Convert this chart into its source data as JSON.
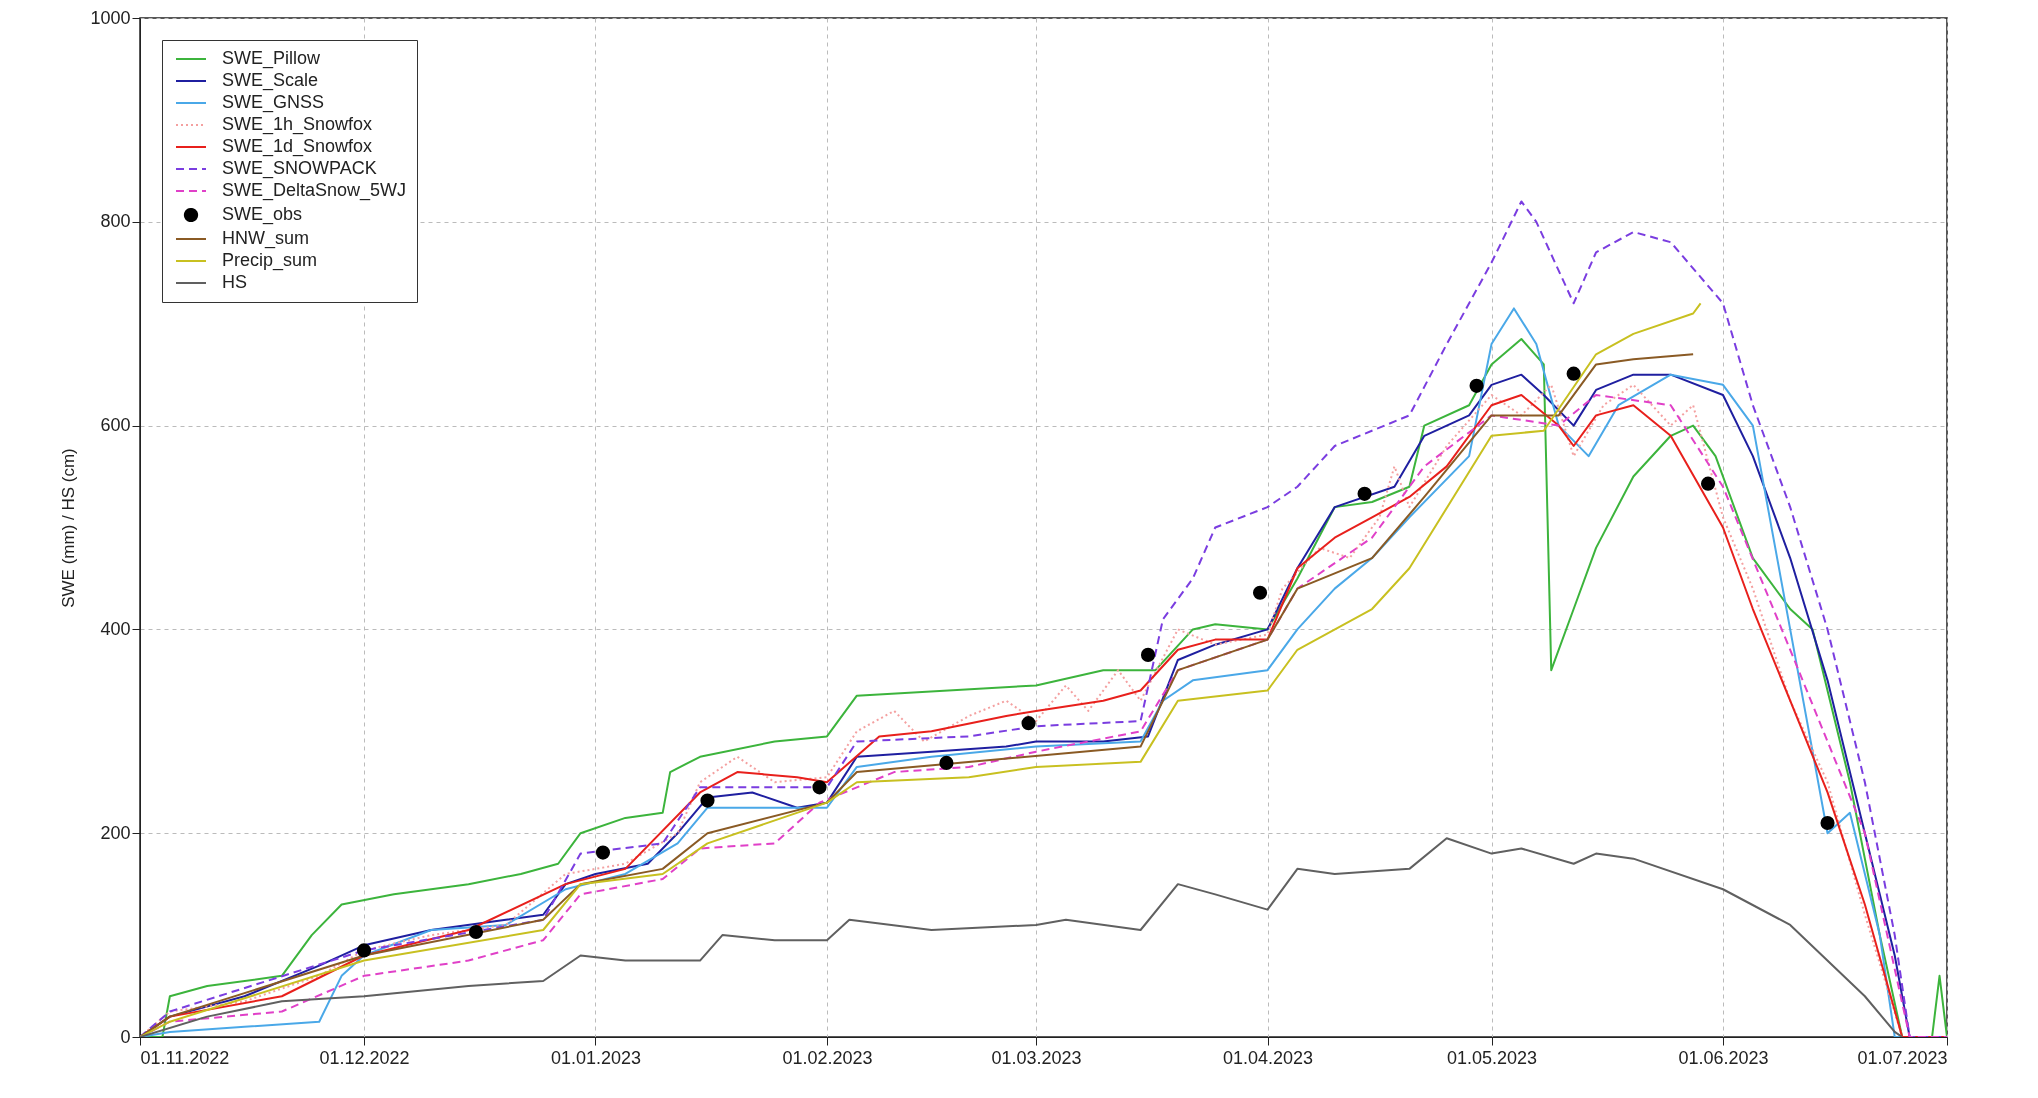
{
  "chart_data": {
    "type": "line",
    "ylabel": "SWE (mm) / HS (cm)",
    "xlim": [
      "2022-11-01",
      "2023-07-01"
    ],
    "xticks": [
      {
        "value": "2022-11-01",
        "label": "01.11.2022"
      },
      {
        "value": "2022-12-01",
        "label": "01.12.2022"
      },
      {
        "value": "2023-01-01",
        "label": "01.01.2023"
      },
      {
        "value": "2023-02-01",
        "label": "01.02.2023"
      },
      {
        "value": "2023-03-01",
        "label": "01.03.2023"
      },
      {
        "value": "2023-04-01",
        "label": "01.04.2023"
      },
      {
        "value": "2023-05-01",
        "label": "01.05.2023"
      },
      {
        "value": "2023-06-01",
        "label": "01.06.2023"
      },
      {
        "value": "2023-07-01",
        "label": "01.07.2023"
      }
    ],
    "ylim": [
      0,
      1000
    ],
    "yticks": [
      0,
      200,
      400,
      600,
      800,
      1000
    ],
    "grid": true,
    "legend": "top left",
    "series": [
      {
        "name": "SWE_Pillow",
        "type": "line",
        "color": "#3cb43c",
        "line_style": "solid",
        "x": [
          "2022-11-01",
          "2022-11-04",
          "2022-11-05",
          "2022-11-10",
          "2022-11-20",
          "2022-11-24",
          "2022-11-28",
          "2022-12-05",
          "2022-12-15",
          "2022-12-22",
          "2022-12-27",
          "2022-12-30",
          "2023-01-05",
          "2023-01-10",
          "2023-01-11",
          "2023-01-15",
          "2023-01-25",
          "2023-02-01",
          "2023-02-05",
          "2023-03-01",
          "2023-03-10",
          "2023-03-17",
          "2023-03-22",
          "2023-03-25",
          "2023-04-01",
          "2023-04-05",
          "2023-04-10",
          "2023-04-15",
          "2023-04-20",
          "2023-04-22",
          "2023-04-28",
          "2023-05-01",
          "2023-05-05",
          "2023-05-08",
          "2023-05-09",
          "2023-05-12",
          "2023-05-15",
          "2023-05-20",
          "2023-05-25",
          "2023-05-28",
          "2023-05-31",
          "2023-06-05",
          "2023-06-10",
          "2023-06-13",
          "2023-06-18",
          "2023-06-22",
          "2023-06-25",
          "2023-06-29",
          "2023-06-30",
          "2023-07-01"
        ],
        "values": [
          0,
          0,
          40,
          50,
          60,
          100,
          130,
          140,
          150,
          160,
          170,
          200,
          215,
          220,
          260,
          275,
          290,
          295,
          335,
          345,
          360,
          360,
          400,
          405,
          400,
          450,
          520,
          525,
          540,
          600,
          620,
          660,
          685,
          660,
          360,
          420,
          480,
          550,
          590,
          600,
          570,
          470,
          420,
          400,
          250,
          100,
          0,
          0,
          60,
          0
        ]
      },
      {
        "name": "SWE_Scale",
        "type": "line",
        "color": "#1f1fa0",
        "line_style": "solid",
        "x": [
          "2022-11-01",
          "2022-11-05",
          "2022-11-15",
          "2022-11-25",
          "2022-12-01",
          "2022-12-10",
          "2022-12-20",
          "2022-12-25",
          "2022-12-28",
          "2023-01-01",
          "2023-01-08",
          "2023-01-12",
          "2023-01-16",
          "2023-01-22",
          "2023-01-28",
          "2023-02-01",
          "2023-02-05",
          "2023-02-15",
          "2023-02-25",
          "2023-03-01",
          "2023-03-10",
          "2023-03-16",
          "2023-03-20",
          "2023-03-25",
          "2023-04-01",
          "2023-04-05",
          "2023-04-10",
          "2023-04-18",
          "2023-04-22",
          "2023-04-28",
          "2023-05-01",
          "2023-05-05",
          "2023-05-08",
          "2023-05-12",
          "2023-05-15",
          "2023-05-20",
          "2023-05-25",
          "2023-06-01",
          "2023-06-05",
          "2023-06-10",
          "2023-06-15",
          "2023-06-20",
          "2023-06-24",
          "2023-06-26",
          "2023-07-01"
        ],
        "values": [
          0,
          20,
          40,
          70,
          90,
          105,
          115,
          120,
          150,
          160,
          170,
          200,
          235,
          240,
          225,
          230,
          275,
          280,
          285,
          290,
          290,
          295,
          370,
          385,
          400,
          460,
          520,
          540,
          590,
          610,
          640,
          650,
          630,
          600,
          635,
          650,
          650,
          630,
          570,
          470,
          350,
          200,
          80,
          0,
          0
        ]
      },
      {
        "name": "SWE_GNSS",
        "type": "line",
        "color": "#4aa8e8",
        "line_style": "solid",
        "x": [
          "2022-11-01",
          "2022-11-05",
          "2022-11-15",
          "2022-11-25",
          "2022-11-28",
          "2022-12-01",
          "2022-12-10",
          "2022-12-20",
          "2022-12-28",
          "2023-01-05",
          "2023-01-12",
          "2023-01-16",
          "2023-01-25",
          "2023-02-01",
          "2023-02-05",
          "2023-02-15",
          "2023-03-01",
          "2023-03-15",
          "2023-03-18",
          "2023-03-22",
          "2023-04-01",
          "2023-04-05",
          "2023-04-10",
          "2023-04-15",
          "2023-04-20",
          "2023-04-28",
          "2023-05-01",
          "2023-05-04",
          "2023-05-07",
          "2023-05-10",
          "2023-05-14",
          "2023-05-18",
          "2023-05-25",
          "2023-06-01",
          "2023-06-05",
          "2023-06-10",
          "2023-06-15",
          "2023-06-18",
          "2023-06-22",
          "2023-06-24",
          "2023-07-01"
        ],
        "values": [
          0,
          5,
          10,
          15,
          60,
          80,
          105,
          110,
          145,
          160,
          190,
          225,
          225,
          225,
          265,
          275,
          285,
          290,
          330,
          350,
          360,
          400,
          440,
          470,
          510,
          570,
          680,
          715,
          680,
          600,
          570,
          620,
          650,
          640,
          600,
          400,
          200,
          220,
          100,
          0,
          0
        ]
      },
      {
        "name": "SWE_1h_Snowfox",
        "type": "line",
        "color": "#f4a0a0",
        "line_style": "dotted",
        "x": [
          "2022-11-01",
          "2022-11-05",
          "2022-11-15",
          "2022-11-25",
          "2022-12-01",
          "2022-12-10",
          "2022-12-20",
          "2022-12-28",
          "2023-01-05",
          "2023-01-12",
          "2023-01-15",
          "2023-01-20",
          "2023-01-25",
          "2023-02-01",
          "2023-02-05",
          "2023-02-10",
          "2023-02-14",
          "2023-02-20",
          "2023-02-25",
          "2023-03-01",
          "2023-03-05",
          "2023-03-08",
          "2023-03-12",
          "2023-03-15",
          "2023-03-20",
          "2023-03-25",
          "2023-04-01",
          "2023-04-03",
          "2023-04-08",
          "2023-04-12",
          "2023-04-16",
          "2023-04-18",
          "2023-04-20",
          "2023-04-25",
          "2023-05-01",
          "2023-05-05",
          "2023-05-09",
          "2023-05-12",
          "2023-05-16",
          "2023-05-20",
          "2023-05-25",
          "2023-05-28",
          "2023-06-01",
          "2023-06-05",
          "2023-06-10",
          "2023-06-15",
          "2023-06-20",
          "2023-06-25",
          "2023-07-01"
        ],
        "values": [
          0,
          25,
          35,
          60,
          85,
          100,
          110,
          160,
          170,
          200,
          250,
          275,
          250,
          255,
          300,
          320,
          290,
          315,
          330,
          310,
          345,
          320,
          360,
          330,
          400,
          385,
          395,
          440,
          480,
          470,
          510,
          560,
          520,
          580,
          630,
          610,
          640,
          570,
          620,
          640,
          600,
          620,
          510,
          440,
          330,
          250,
          120,
          0,
          0
        ]
      },
      {
        "name": "SWE_1d_Snowfox",
        "type": "line",
        "color": "#e8201c",
        "line_style": "solid",
        "x": [
          "2022-11-01",
          "2022-11-05",
          "2022-11-20",
          "2022-12-01",
          "2022-12-15",
          "2022-12-28",
          "2023-01-05",
          "2023-01-15",
          "2023-01-20",
          "2023-01-28",
          "2023-02-01",
          "2023-02-08",
          "2023-02-15",
          "2023-02-25",
          "2023-03-01",
          "2023-03-10",
          "2023-03-15",
          "2023-03-20",
          "2023-03-25",
          "2023-04-01",
          "2023-04-05",
          "2023-04-10",
          "2023-04-15",
          "2023-04-20",
          "2023-04-25",
          "2023-05-01",
          "2023-05-05",
          "2023-05-10",
          "2023-05-12",
          "2023-05-15",
          "2023-05-20",
          "2023-05-25",
          "2023-06-01",
          "2023-06-05",
          "2023-06-10",
          "2023-06-15",
          "2023-06-20",
          "2023-06-25",
          "2023-07-01"
        ],
        "values": [
          0,
          20,
          40,
          80,
          105,
          150,
          165,
          240,
          260,
          255,
          250,
          295,
          300,
          315,
          320,
          330,
          340,
          380,
          390,
          390,
          460,
          490,
          510,
          530,
          560,
          620,
          630,
          600,
          580,
          610,
          620,
          590,
          500,
          420,
          330,
          240,
          130,
          0,
          0
        ]
      },
      {
        "name": "SWE_SNOWPACK",
        "type": "line",
        "color": "#7a3de0",
        "line_style": "dashed",
        "x": [
          "2022-11-01",
          "2022-11-05",
          "2022-12-01",
          "2022-12-25",
          "2022-12-30",
          "2023-01-10",
          "2023-01-15",
          "2023-02-01",
          "2023-02-05",
          "2023-02-20",
          "2023-03-01",
          "2023-03-15",
          "2023-03-18",
          "2023-03-22",
          "2023-03-25",
          "2023-04-01",
          "2023-04-05",
          "2023-04-10",
          "2023-04-20",
          "2023-04-25",
          "2023-05-01",
          "2023-05-03",
          "2023-05-05",
          "2023-05-07",
          "2023-05-12",
          "2023-05-15",
          "2023-05-20",
          "2023-05-25",
          "2023-06-01",
          "2023-06-05",
          "2023-06-10",
          "2023-06-15",
          "2023-06-20",
          "2023-06-24",
          "2023-06-26",
          "2023-07-01"
        ],
        "values": [
          0,
          25,
          85,
          115,
          180,
          190,
          245,
          245,
          290,
          295,
          305,
          310,
          410,
          450,
          500,
          520,
          540,
          580,
          610,
          680,
          760,
          790,
          820,
          800,
          720,
          770,
          790,
          780,
          720,
          620,
          520,
          400,
          250,
          100,
          0,
          0
        ]
      },
      {
        "name": "SWE_DeltaSnow_5WJ",
        "type": "line",
        "color": "#e040c8",
        "line_style": "dashed",
        "x": [
          "2022-11-01",
          "2022-11-05",
          "2022-11-20",
          "2022-12-01",
          "2022-12-15",
          "2022-12-25",
          "2022-12-30",
          "2023-01-10",
          "2023-01-15",
          "2023-01-25",
          "2023-01-31",
          "2023-02-10",
          "2023-02-20",
          "2023-03-01",
          "2023-03-15",
          "2023-03-20",
          "2023-04-01",
          "2023-04-05",
          "2023-04-15",
          "2023-04-22",
          "2023-05-01",
          "2023-05-10",
          "2023-05-15",
          "2023-05-25",
          "2023-06-01",
          "2023-06-10",
          "2023-06-20",
          "2023-06-26",
          "2023-07-01"
        ],
        "values": [
          0,
          15,
          25,
          60,
          75,
          95,
          140,
          155,
          185,
          190,
          230,
          260,
          265,
          280,
          300,
          360,
          390,
          440,
          490,
          560,
          610,
          600,
          630,
          620,
          540,
          380,
          200,
          0,
          0
        ]
      },
      {
        "name": "SWE_obs",
        "type": "scatter",
        "color": "#000000",
        "marker": "circle",
        "x": [
          "2022-12-01",
          "2022-12-16",
          "2023-01-02",
          "2023-01-16",
          "2023-01-31",
          "2023-02-17",
          "2023-02-28",
          "2023-03-16",
          "2023-03-31",
          "2023-04-14",
          "2023-04-29",
          "2023-05-12",
          "2023-05-30",
          "2023-06-15"
        ],
        "values": [
          85,
          103,
          181,
          232,
          245,
          269,
          308,
          375,
          436,
          533,
          639,
          651,
          543,
          210
        ]
      },
      {
        "name": "HNW_sum",
        "type": "line",
        "color": "#8a5a24",
        "line_style": "solid",
        "x": [
          "2022-11-01",
          "2022-11-05",
          "2022-12-01",
          "2022-12-25",
          "2022-12-30",
          "2023-01-10",
          "2023-01-16",
          "2023-02-01",
          "2023-02-05",
          "2023-03-15",
          "2023-03-20",
          "2023-04-01",
          "2023-04-05",
          "2023-04-15",
          "2023-04-22",
          "2023-05-01",
          "2023-05-10",
          "2023-05-15",
          "2023-05-20",
          "2023-05-28"
        ],
        "values": [
          0,
          20,
          80,
          115,
          150,
          165,
          200,
          230,
          260,
          285,
          360,
          390,
          440,
          470,
          530,
          610,
          610,
          660,
          665,
          670
        ]
      },
      {
        "name": "Precip_sum",
        "type": "line",
        "color": "#c8c020",
        "line_style": "solid",
        "x": [
          "2022-11-01",
          "2022-11-05",
          "2022-12-01",
          "2022-12-25",
          "2022-12-30",
          "2023-01-10",
          "2023-01-16",
          "2023-02-01",
          "2023-02-05",
          "2023-02-20",
          "2023-03-01",
          "2023-03-15",
          "2023-03-20",
          "2023-04-01",
          "2023-04-05",
          "2023-04-15",
          "2023-04-20",
          "2023-05-01",
          "2023-05-08",
          "2023-05-15",
          "2023-05-20",
          "2023-05-28",
          "2023-05-29"
        ],
        "values": [
          0,
          15,
          75,
          105,
          150,
          160,
          190,
          230,
          250,
          255,
          265,
          270,
          330,
          340,
          380,
          420,
          460,
          590,
          595,
          670,
          690,
          710,
          720
        ]
      },
      {
        "name": "HS",
        "type": "line",
        "color": "#606060",
        "line_style": "solid",
        "x": [
          "2022-11-01",
          "2022-11-10",
          "2022-11-20",
          "2022-12-01",
          "2022-12-15",
          "2022-12-25",
          "2022-12-30",
          "2023-01-05",
          "2023-01-15",
          "2023-01-18",
          "2023-01-25",
          "2023-02-01",
          "2023-02-04",
          "2023-02-15",
          "2023-03-01",
          "2023-03-05",
          "2023-03-15",
          "2023-03-20",
          "2023-03-25",
          "2023-04-01",
          "2023-04-05",
          "2023-04-10",
          "2023-04-20",
          "2023-04-25",
          "2023-05-01",
          "2023-05-05",
          "2023-05-12",
          "2023-05-15",
          "2023-05-20",
          "2023-06-01",
          "2023-06-10",
          "2023-06-20",
          "2023-06-24",
          "2023-06-25"
        ],
        "values": [
          0,
          20,
          35,
          40,
          50,
          55,
          80,
          75,
          75,
          100,
          95,
          95,
          115,
          105,
          110,
          115,
          105,
          150,
          140,
          125,
          165,
          160,
          165,
          195,
          180,
          185,
          170,
          180,
          175,
          145,
          110,
          40,
          5,
          0
        ]
      }
    ]
  }
}
